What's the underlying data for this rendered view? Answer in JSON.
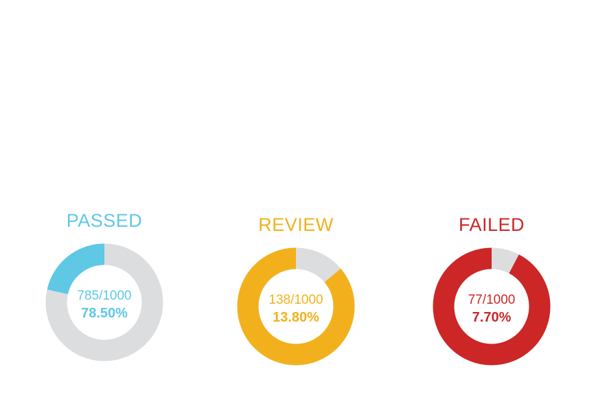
{
  "chart_data": {
    "type": "pie",
    "style": "donut",
    "total": 1000,
    "track_color": "#dcdddf",
    "gauges": [
      {
        "title": "PASSED",
        "value": 785,
        "fraction_label": "785/1000",
        "percent_label": "78.50%",
        "color": "#5ec8e5",
        "filled_share": 0.215
      },
      {
        "title": "REVIEW",
        "value": 138,
        "fraction_label": "138/1000",
        "percent_label": "13.80%",
        "color": "#f2b11c",
        "filled_share": 0.862
      },
      {
        "title": "FAILED",
        "value": 77,
        "fraction_label": "77/1000",
        "percent_label": "7.70%",
        "color": "#cc2627",
        "filled_share": 0.923
      }
    ]
  }
}
